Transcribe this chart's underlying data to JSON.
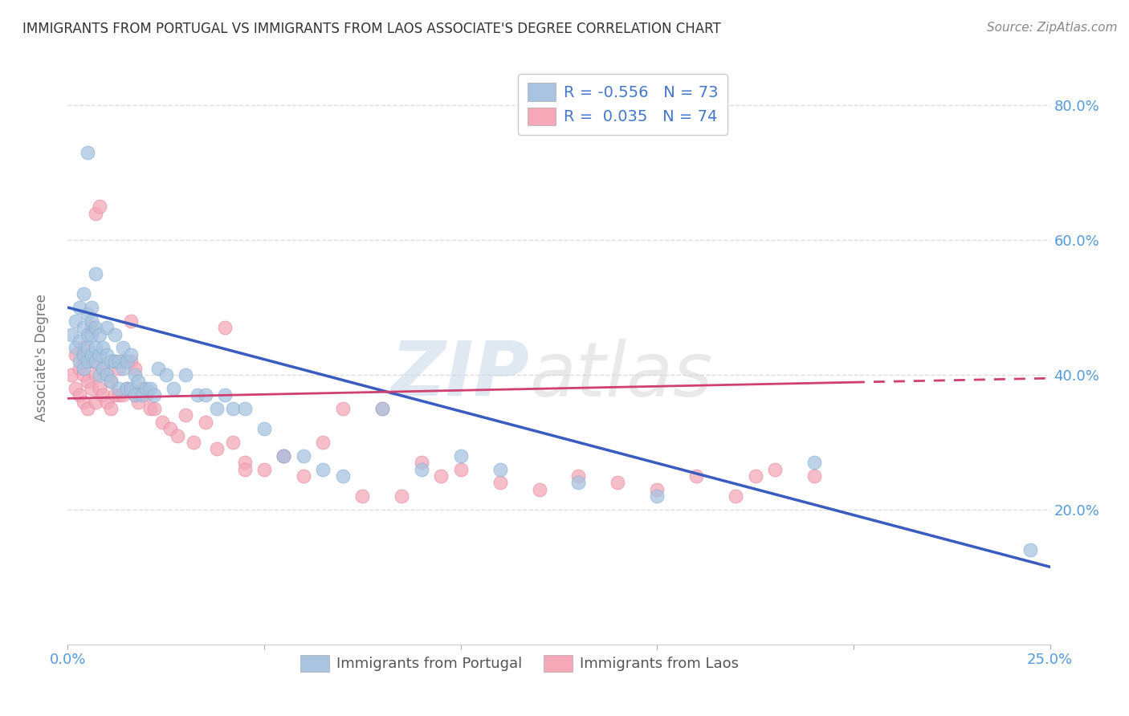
{
  "title": "IMMIGRANTS FROM PORTUGAL VS IMMIGRANTS FROM LAOS ASSOCIATE'S DEGREE CORRELATION CHART",
  "source": "Source: ZipAtlas.com",
  "ylabel": "Associate's Degree",
  "xlim": [
    0.0,
    0.25
  ],
  "ylim": [
    0.0,
    0.85
  ],
  "yticks": [
    0.2,
    0.4,
    0.6,
    0.8
  ],
  "ytick_labels": [
    "20.0%",
    "40.0%",
    "60.0%",
    "80.0%"
  ],
  "portugal_color": "#a8c4e0",
  "portugal_edge_color": "#7aaad0",
  "laos_color": "#f4a8b8",
  "laos_edge_color": "#e080a0",
  "portugal_line_color": "#3a5bbf",
  "laos_line_color": "#d04070",
  "portugal_R": -0.556,
  "portugal_N": 73,
  "laos_R": 0.035,
  "laos_N": 74,
  "legend_label_portugal": "Immigrants from Portugal",
  "legend_label_laos": "Immigrants from Laos",
  "watermark_zip": "ZIP",
  "watermark_atlas": "atlas",
  "background_color": "#ffffff",
  "grid_color": "#dddddd",
  "portugal_line_x0": 0.0,
  "portugal_line_y0": 0.5,
  "portugal_line_x1": 0.25,
  "portugal_line_y1": 0.115,
  "laos_line_x0": 0.0,
  "laos_line_y0": 0.365,
  "laos_line_x1": 0.25,
  "laos_line_y1": 0.395,
  "portugal_scatter_x": [
    0.001,
    0.002,
    0.002,
    0.003,
    0.003,
    0.003,
    0.004,
    0.004,
    0.004,
    0.004,
    0.005,
    0.005,
    0.005,
    0.005,
    0.005,
    0.006,
    0.006,
    0.006,
    0.006,
    0.007,
    0.007,
    0.007,
    0.007,
    0.008,
    0.008,
    0.008,
    0.009,
    0.009,
    0.01,
    0.01,
    0.01,
    0.011,
    0.011,
    0.012,
    0.012,
    0.013,
    0.013,
    0.014,
    0.014,
    0.015,
    0.015,
    0.016,
    0.016,
    0.017,
    0.017,
    0.018,
    0.019,
    0.02,
    0.021,
    0.022,
    0.023,
    0.025,
    0.027,
    0.03,
    0.033,
    0.035,
    0.038,
    0.04,
    0.042,
    0.045,
    0.05,
    0.055,
    0.06,
    0.065,
    0.07,
    0.08,
    0.09,
    0.1,
    0.11,
    0.13,
    0.15,
    0.19,
    0.245
  ],
  "portugal_scatter_y": [
    0.46,
    0.44,
    0.48,
    0.42,
    0.45,
    0.5,
    0.41,
    0.43,
    0.47,
    0.52,
    0.44,
    0.46,
    0.49,
    0.42,
    0.73,
    0.43,
    0.46,
    0.48,
    0.5,
    0.42,
    0.44,
    0.47,
    0.55,
    0.4,
    0.43,
    0.46,
    0.41,
    0.44,
    0.4,
    0.43,
    0.47,
    0.39,
    0.42,
    0.42,
    0.46,
    0.38,
    0.42,
    0.41,
    0.44,
    0.38,
    0.42,
    0.38,
    0.43,
    0.37,
    0.4,
    0.39,
    0.37,
    0.38,
    0.38,
    0.37,
    0.41,
    0.4,
    0.38,
    0.4,
    0.37,
    0.37,
    0.35,
    0.37,
    0.35,
    0.35,
    0.32,
    0.28,
    0.28,
    0.26,
    0.25,
    0.35,
    0.26,
    0.28,
    0.26,
    0.24,
    0.22,
    0.27,
    0.14
  ],
  "laos_scatter_x": [
    0.001,
    0.002,
    0.002,
    0.003,
    0.003,
    0.004,
    0.004,
    0.004,
    0.005,
    0.005,
    0.005,
    0.006,
    0.006,
    0.006,
    0.007,
    0.007,
    0.007,
    0.008,
    0.008,
    0.009,
    0.009,
    0.01,
    0.01,
    0.011,
    0.011,
    0.012,
    0.012,
    0.013,
    0.013,
    0.014,
    0.014,
    0.015,
    0.016,
    0.016,
    0.017,
    0.017,
    0.018,
    0.019,
    0.02,
    0.021,
    0.022,
    0.024,
    0.026,
    0.028,
    0.03,
    0.032,
    0.035,
    0.038,
    0.04,
    0.042,
    0.045,
    0.05,
    0.055,
    0.06,
    0.065,
    0.07,
    0.08,
    0.09,
    0.1,
    0.11,
    0.12,
    0.13,
    0.14,
    0.15,
    0.16,
    0.17,
    0.175,
    0.18,
    0.19,
    0.095,
    0.085,
    0.075,
    0.055,
    0.045
  ],
  "laos_scatter_y": [
    0.4,
    0.38,
    0.43,
    0.37,
    0.41,
    0.36,
    0.4,
    0.44,
    0.35,
    0.39,
    0.42,
    0.38,
    0.42,
    0.47,
    0.36,
    0.4,
    0.64,
    0.38,
    0.65,
    0.37,
    0.41,
    0.36,
    0.4,
    0.35,
    0.39,
    0.37,
    0.42,
    0.37,
    0.41,
    0.37,
    0.42,
    0.38,
    0.42,
    0.48,
    0.37,
    0.41,
    0.36,
    0.38,
    0.37,
    0.35,
    0.35,
    0.33,
    0.32,
    0.31,
    0.34,
    0.3,
    0.33,
    0.29,
    0.47,
    0.3,
    0.27,
    0.26,
    0.28,
    0.25,
    0.3,
    0.35,
    0.35,
    0.27,
    0.26,
    0.24,
    0.23,
    0.25,
    0.24,
    0.23,
    0.25,
    0.22,
    0.25,
    0.26,
    0.25,
    0.25,
    0.22,
    0.22,
    0.28,
    0.26
  ]
}
